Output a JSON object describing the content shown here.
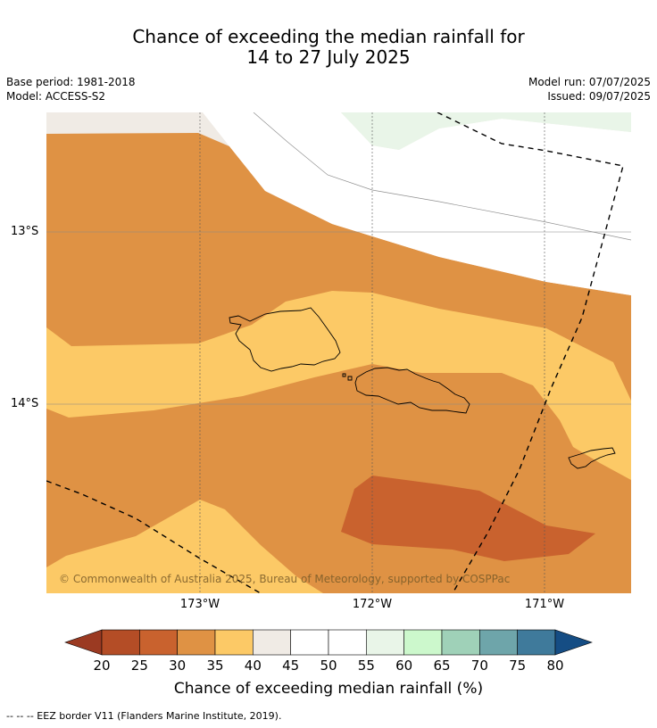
{
  "title": {
    "line1": "Chance of exceeding the median rainfall for",
    "line2": "14 to 27 July 2025"
  },
  "meta": {
    "base_period": "Base period: 1981-2018",
    "model": "Model: ACCESS-S2",
    "model_run": "Model run: 07/07/2025",
    "issued": "Issued: 09/07/2025"
  },
  "axes": {
    "lat_labels": [
      "13°S",
      "14°S"
    ],
    "lon_labels": [
      "173°W",
      "172°W",
      "171°W"
    ]
  },
  "copyright": "© Commonwealth of Australia 2025, Bureau of Meteorology, supported by COSPPac",
  "colorbar": {
    "label": "Chance of exceeding median rainfall (%)",
    "ticks": [
      "20",
      "25",
      "30",
      "35",
      "40",
      "45",
      "50",
      "55",
      "60",
      "65",
      "70",
      "75",
      "80"
    ],
    "colors": [
      "#9b3a22",
      "#b44d26",
      "#c9622e",
      "#df9244",
      "#fcc966",
      "#f0ebe5",
      "#ffffff",
      "#ffffff",
      "#e9f5e8",
      "#ccf8cc",
      "#9fd1b8",
      "#6ea5aa",
      "#3f7a9b",
      "#154d84"
    ],
    "under_color": "#9b3a22",
    "over_color": "#154d84"
  },
  "map_colors": {
    "band_30_35": "#df9244",
    "band_25_30": "#c9622e",
    "band_35_40": "#fcc966",
    "band_40_45": "#f0ebe5",
    "band_50_55": "#ffffff",
    "band_55_60": "#e9f5e8"
  },
  "footnote": "--  --  -- EEZ border V11 (Flanders Marine Institute, 2019)."
}
